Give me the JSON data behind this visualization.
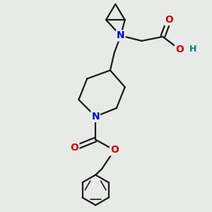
{
  "bg_color": "#e8eae8",
  "atom_colors": {
    "N": "#0000cc",
    "O": "#cc0000",
    "H": "#008080"
  },
  "bond_color": "#1a1a1a",
  "bond_width": 1.6,
  "font_size_atom": 10,
  "font_size_H": 9,
  "figsize": [
    3.0,
    3.0
  ],
  "dpi": 100
}
